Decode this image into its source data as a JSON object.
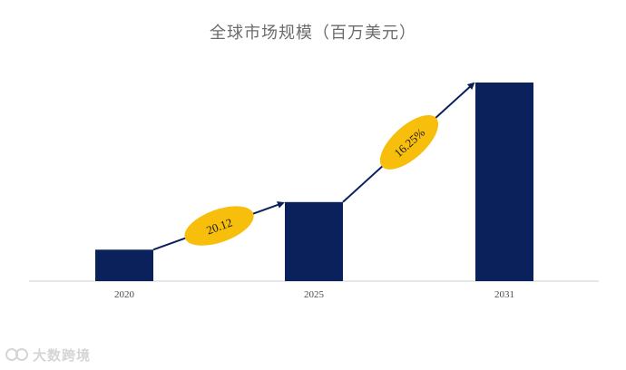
{
  "chart_data": {
    "type": "bar",
    "title": "全球市场规模（百万美元）",
    "categories": [
      "2020",
      "2025",
      "2031"
    ],
    "values": [
      35,
      88,
      221
    ],
    "ylim": [
      0,
      221
    ],
    "grid": false,
    "annotations": [
      {
        "from": "2020",
        "to": "2025",
        "label": "20.12"
      },
      {
        "from": "2025",
        "to": "2031",
        "label": "16.25%"
      }
    ],
    "colors": {
      "bar": "#0a215c",
      "arrow": "#0a215c",
      "bubble": "#f7be0c",
      "axis": "#cfcfcf"
    }
  },
  "watermark": {
    "logo": "logo-icon",
    "text": "大数跨境"
  }
}
